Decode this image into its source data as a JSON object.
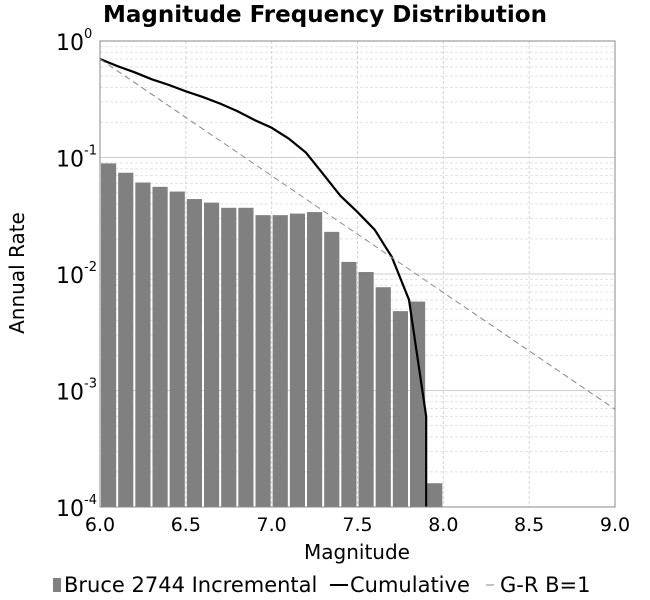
{
  "chart_data": {
    "type": "bar",
    "title": "Magnitude Frequency Distribution",
    "xlabel": "Magnitude",
    "ylabel": "Annual Rate",
    "xlim": [
      6.0,
      9.0
    ],
    "ylim": [
      0.0001,
      1
    ],
    "yscale": "log",
    "grid": true,
    "x_ticks": [
      "6.0",
      "6.5",
      "7.0",
      "7.5",
      "8.0",
      "8.5",
      "9.0"
    ],
    "y_ticks": [
      {
        "base": "10",
        "exp": "0"
      },
      {
        "base": "10",
        "exp": "-1"
      },
      {
        "base": "10",
        "exp": "-2"
      },
      {
        "base": "10",
        "exp": "-3"
      },
      {
        "base": "10",
        "exp": "-4"
      }
    ],
    "legend_position": "bottom",
    "series": [
      {
        "name": "Bruce 2744 Incremental",
        "kind": "bar",
        "color": "#808080",
        "x": [
          6.05,
          6.15,
          6.25,
          6.35,
          6.45,
          6.55,
          6.65,
          6.75,
          6.85,
          6.95,
          7.05,
          7.15,
          7.25,
          7.35,
          7.45,
          7.55,
          7.65,
          7.75,
          7.85,
          7.95
        ],
        "values": [
          0.089,
          0.074,
          0.061,
          0.056,
          0.051,
          0.044,
          0.041,
          0.037,
          0.037,
          0.032,
          0.032,
          0.033,
          0.034,
          0.023,
          0.0127,
          0.0104,
          0.0077,
          0.0048,
          0.0058,
          0.00016
        ]
      },
      {
        "name": "Cumulative",
        "kind": "line",
        "color": "#000000",
        "x": [
          6.0,
          6.1,
          6.2,
          6.3,
          6.4,
          6.5,
          6.6,
          6.7,
          6.8,
          6.9,
          7.0,
          7.1,
          7.2,
          7.3,
          7.4,
          7.5,
          7.6,
          7.7,
          7.8,
          7.9,
          7.9
        ],
        "values": [
          0.7,
          0.61,
          0.54,
          0.47,
          0.42,
          0.37,
          0.33,
          0.29,
          0.25,
          0.21,
          0.18,
          0.145,
          0.11,
          0.072,
          0.047,
          0.034,
          0.024,
          0.014,
          0.006,
          0.0006,
          0.0001
        ]
      },
      {
        "name": "G-R B=1",
        "kind": "dashed-line",
        "color": "#888888",
        "x": [
          6.0,
          9.0
        ],
        "values": [
          0.7,
          0.00069
        ]
      }
    ]
  }
}
